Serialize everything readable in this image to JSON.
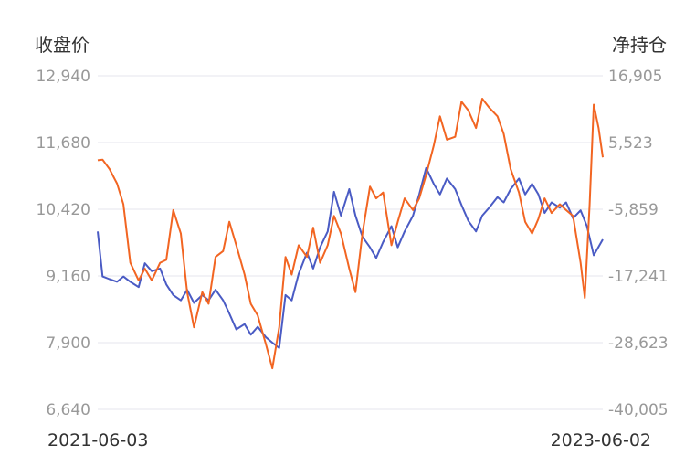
{
  "chart_data": {
    "type": "line",
    "ylabel_left": "收盘价",
    "ylabel_right": "净持仓",
    "left_axis": {
      "ticks": [
        "12,940",
        "11,680",
        "10,420",
        "9,160",
        "7,900",
        "6,640"
      ],
      "range": [
        6640,
        12940
      ]
    },
    "right_axis": {
      "ticks": [
        "16,905",
        "5,523",
        "-5,859",
        "-17,241",
        "-28,623",
        "-40,005"
      ],
      "range": [
        -40005,
        16905
      ]
    },
    "x_labels": {
      "start": "2021-06-03",
      "end": "2023-06-02"
    },
    "grid": true,
    "series": [
      {
        "axis": "left",
        "color": "#4a5bc4",
        "points": [
          [
            "2021-06-03",
            10000
          ],
          [
            "2021-06-10",
            9150
          ],
          [
            "2021-06-20",
            9100
          ],
          [
            "2021-07-01",
            9050
          ],
          [
            "2021-07-10",
            9150
          ],
          [
            "2021-07-20",
            9050
          ],
          [
            "2021-08-01",
            8950
          ],
          [
            "2021-08-10",
            9400
          ],
          [
            "2021-08-20",
            9250
          ],
          [
            "2021-09-01",
            9300
          ],
          [
            "2021-09-10",
            9000
          ],
          [
            "2021-09-20",
            8800
          ],
          [
            "2021-10-01",
            8700
          ],
          [
            "2021-10-10",
            8900
          ],
          [
            "2021-10-20",
            8650
          ],
          [
            "2021-11-01",
            8800
          ],
          [
            "2021-11-10",
            8700
          ],
          [
            "2021-11-20",
            8900
          ],
          [
            "2021-12-01",
            8700
          ],
          [
            "2021-12-10",
            8450
          ],
          [
            "2021-12-20",
            8150
          ],
          [
            "2022-01-01",
            8250
          ],
          [
            "2022-01-10",
            8050
          ],
          [
            "2022-01-20",
            8200
          ],
          [
            "2022-02-01",
            8000
          ],
          [
            "2022-02-10",
            7900
          ],
          [
            "2022-02-20",
            7800
          ],
          [
            "2022-03-01",
            8800
          ],
          [
            "2022-03-10",
            8700
          ],
          [
            "2022-03-20",
            9200
          ],
          [
            "2022-04-01",
            9600
          ],
          [
            "2022-04-10",
            9300
          ],
          [
            "2022-04-20",
            9700
          ],
          [
            "2022-05-01",
            10000
          ],
          [
            "2022-05-10",
            10750
          ],
          [
            "2022-05-20",
            10300
          ],
          [
            "2022-06-01",
            10800
          ],
          [
            "2022-06-10",
            10300
          ],
          [
            "2022-06-20",
            9900
          ],
          [
            "2022-07-01",
            9700
          ],
          [
            "2022-07-10",
            9500
          ],
          [
            "2022-07-20",
            9800
          ],
          [
            "2022-08-01",
            10100
          ],
          [
            "2022-08-10",
            9700
          ],
          [
            "2022-08-20",
            10000
          ],
          [
            "2022-09-01",
            10300
          ],
          [
            "2022-09-10",
            10700
          ],
          [
            "2022-09-20",
            11200
          ],
          [
            "2022-10-01",
            10900
          ],
          [
            "2022-10-10",
            10700
          ],
          [
            "2022-10-20",
            11000
          ],
          [
            "2022-11-01",
            10800
          ],
          [
            "2022-11-10",
            10500
          ],
          [
            "2022-11-20",
            10200
          ],
          [
            "2022-12-01",
            10000
          ],
          [
            "2022-12-10",
            10300
          ],
          [
            "2022-12-20",
            10450
          ],
          [
            "2023-01-01",
            10650
          ],
          [
            "2023-01-10",
            10550
          ],
          [
            "2023-01-20",
            10800
          ],
          [
            "2023-02-01",
            11000
          ],
          [
            "2023-02-10",
            10700
          ],
          [
            "2023-02-20",
            10900
          ],
          [
            "2023-03-01",
            10700
          ],
          [
            "2023-03-10",
            10350
          ],
          [
            "2023-03-20",
            10550
          ],
          [
            "2023-04-01",
            10450
          ],
          [
            "2023-04-10",
            10550
          ],
          [
            "2023-04-20",
            10250
          ],
          [
            "2023-05-01",
            10400
          ],
          [
            "2023-05-10",
            10100
          ],
          [
            "2023-05-20",
            9550
          ],
          [
            "2023-06-02",
            9850
          ]
        ]
      },
      {
        "axis": "right",
        "color": "#f26522",
        "points": [
          [
            "2021-06-03",
            2500
          ],
          [
            "2021-06-10",
            2600
          ],
          [
            "2021-06-20",
            1000
          ],
          [
            "2021-07-01",
            -1500
          ],
          [
            "2021-07-10",
            -5000
          ],
          [
            "2021-07-20",
            -15000
          ],
          [
            "2021-08-01",
            -18000
          ],
          [
            "2021-08-10",
            -16000
          ],
          [
            "2021-08-20",
            -18000
          ],
          [
            "2021-09-01",
            -15000
          ],
          [
            "2021-09-10",
            -14500
          ],
          [
            "2021-09-20",
            -6000
          ],
          [
            "2021-10-01",
            -10000
          ],
          [
            "2021-10-10",
            -20000
          ],
          [
            "2021-10-20",
            -26000
          ],
          [
            "2021-11-01",
            -20000
          ],
          [
            "2021-11-10",
            -22000
          ],
          [
            "2021-11-20",
            -14000
          ],
          [
            "2021-12-01",
            -13000
          ],
          [
            "2021-12-10",
            -8000
          ],
          [
            "2021-12-20",
            -12000
          ],
          [
            "2022-01-01",
            -17000
          ],
          [
            "2022-01-10",
            -22000
          ],
          [
            "2022-01-20",
            -24000
          ],
          [
            "2022-02-01",
            -29000
          ],
          [
            "2022-02-10",
            -33000
          ],
          [
            "2022-02-20",
            -26000
          ],
          [
            "2022-03-01",
            -14000
          ],
          [
            "2022-03-10",
            -17000
          ],
          [
            "2022-03-20",
            -12000
          ],
          [
            "2022-04-01",
            -14000
          ],
          [
            "2022-04-10",
            -9000
          ],
          [
            "2022-04-20",
            -15000
          ],
          [
            "2022-05-01",
            -12000
          ],
          [
            "2022-05-10",
            -7000
          ],
          [
            "2022-05-20",
            -10000
          ],
          [
            "2022-06-01",
            -16000
          ],
          [
            "2022-06-10",
            -20000
          ],
          [
            "2022-06-20",
            -10000
          ],
          [
            "2022-07-01",
            -2000
          ],
          [
            "2022-07-10",
            -4000
          ],
          [
            "2022-07-20",
            -3000
          ],
          [
            "2022-08-01",
            -12000
          ],
          [
            "2022-08-10",
            -8000
          ],
          [
            "2022-08-20",
            -4000
          ],
          [
            "2022-09-01",
            -6000
          ],
          [
            "2022-09-10",
            -4000
          ],
          [
            "2022-09-20",
            0
          ],
          [
            "2022-10-01",
            5000
          ],
          [
            "2022-10-10",
            10000
          ],
          [
            "2022-10-20",
            6000
          ],
          [
            "2022-11-01",
            6500
          ],
          [
            "2022-11-10",
            12500
          ],
          [
            "2022-11-20",
            11000
          ],
          [
            "2022-12-01",
            8000
          ],
          [
            "2022-12-10",
            13000
          ],
          [
            "2022-12-20",
            11500
          ],
          [
            "2023-01-01",
            10000
          ],
          [
            "2023-01-10",
            7000
          ],
          [
            "2023-01-20",
            1000
          ],
          [
            "2023-02-01",
            -3000
          ],
          [
            "2023-02-10",
            -8000
          ],
          [
            "2023-02-20",
            -10000
          ],
          [
            "2023-03-01",
            -7500
          ],
          [
            "2023-03-10",
            -4000
          ],
          [
            "2023-03-20",
            -6500
          ],
          [
            "2023-04-01",
            -5000
          ],
          [
            "2023-04-10",
            -6000
          ],
          [
            "2023-04-20",
            -7000
          ],
          [
            "2023-05-01",
            -15000
          ],
          [
            "2023-05-07",
            -21000
          ],
          [
            "2023-05-14",
            -5000
          ],
          [
            "2023-05-20",
            12000
          ],
          [
            "2023-05-27",
            8000
          ],
          [
            "2023-06-02",
            3000
          ]
        ]
      }
    ]
  }
}
